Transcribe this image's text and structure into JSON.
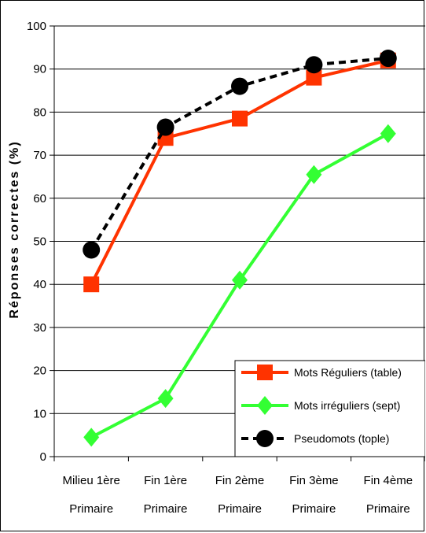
{
  "chart_data": {
    "type": "line",
    "ylabel": "Réponses correctes (%)",
    "xlabel": "",
    "title": "",
    "ylim": [
      0,
      100
    ],
    "yticks": [
      0,
      10,
      20,
      30,
      40,
      50,
      60,
      70,
      80,
      90,
      100
    ],
    "categories": [
      [
        "Milieu 1ère",
        "Primaire"
      ],
      [
        "Fin 1ère",
        "Primaire"
      ],
      [
        "Fin 2ème",
        "Primaire"
      ],
      [
        "Fin 3ème",
        "Primaire"
      ],
      [
        "Fin 4ème",
        "Primaire"
      ]
    ],
    "grid": "horizontal",
    "legend_position": "bottom-right",
    "series": [
      {
        "name": "Mots Réguliers (table)",
        "values": [
          40,
          74,
          78.5,
          88,
          92
        ],
        "color": "#ff3300",
        "marker": "square",
        "dash": "solid"
      },
      {
        "name": "Mots irréguliers (sept)",
        "values": [
          4.5,
          13.5,
          41,
          65.5,
          75
        ],
        "color": "#33ff33",
        "marker": "diamond",
        "dash": "solid"
      },
      {
        "name": "Pseudomots (tople)",
        "values": [
          48,
          76.5,
          86,
          91,
          92.5
        ],
        "color": "#000000",
        "marker": "circle",
        "dash": "dashed"
      }
    ]
  }
}
